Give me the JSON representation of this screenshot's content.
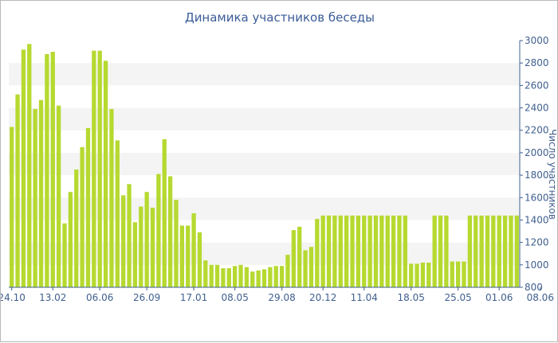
{
  "chart_data": {
    "type": "bar",
    "title": "Динамика участников беседы",
    "ylabel": "Число участников",
    "ylim": [
      800,
      3000
    ],
    "y_ticks": [
      800,
      1000,
      1200,
      1400,
      1600,
      1800,
      2000,
      2200,
      2400,
      2600,
      2800,
      3000
    ],
    "grid": "alternating horizontal bands",
    "bar_color": "#b6d930",
    "x_tick_labels": [
      "24.10",
      "13.02",
      "06.06",
      "26.09",
      "17.01",
      "08.05",
      "29.08",
      "20.12",
      "11.04",
      "18.05",
      "25.05",
      "01.06",
      "08.06"
    ],
    "x_tick_indices": [
      0,
      7,
      15,
      23,
      31,
      38,
      46,
      53,
      60,
      68,
      76,
      83,
      90
    ],
    "values": [
      2230,
      2520,
      2920,
      2970,
      2390,
      2470,
      2880,
      2900,
      2420,
      1370,
      1650,
      1850,
      2050,
      2220,
      2910,
      2910,
      2820,
      2390,
      2110,
      1620,
      1720,
      1380,
      1520,
      1650,
      1510,
      1810,
      2120,
      1790,
      1580,
      1350,
      1350,
      1460,
      1290,
      1040,
      1000,
      1000,
      970,
      970,
      990,
      1000,
      980,
      940,
      950,
      960,
      980,
      990,
      990,
      1090,
      1310,
      1340,
      1130,
      1160,
      1410,
      1440,
      1440,
      1440,
      1440,
      1440,
      1440,
      1440,
      1440,
      1440,
      1440,
      1440,
      1440,
      1440,
      1440,
      1440,
      1010,
      1010,
      1020,
      1020,
      1440,
      1440,
      1440,
      1030,
      1030,
      1030,
      1440,
      1440,
      1440,
      1440,
      1440,
      1440,
      1440,
      1440,
      1440
    ]
  }
}
